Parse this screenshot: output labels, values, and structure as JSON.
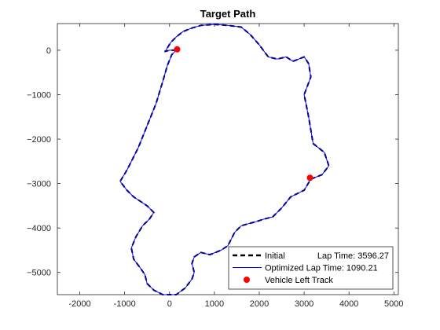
{
  "chart_data": {
    "type": "line",
    "title": "Target Path",
    "xlabel": "",
    "ylabel": "",
    "xlim": [
      -2500,
      5100
    ],
    "ylim": [
      -5500,
      600
    ],
    "grid": false,
    "x_ticks": [
      -2000,
      -1000,
      0,
      1000,
      2000,
      3000,
      4000,
      5000
    ],
    "x_tick_labels": [
      "-2000",
      "-1000",
      "0",
      "1000",
      "2000",
      "3000",
      "4000",
      "5000"
    ],
    "y_ticks": [
      0,
      -1000,
      -2000,
      -3000,
      -4000,
      -5000
    ],
    "y_tick_labels": [
      "0",
      "−1000",
      "−2000",
      "−3000",
      "−4000",
      "−5000"
    ],
    "legend": {
      "placement": "bottom-right",
      "entries": [
        {
          "label": "Initial",
          "extra": "Lap Time: 3596.27",
          "style": "dashed",
          "color": "#000000"
        },
        {
          "label": "Optimized Lap Time: 1090.21",
          "extra": "",
          "style": "solid",
          "color": "#0000ff"
        },
        {
          "label": "Vehicle Left Track",
          "extra": "",
          "style": "marker",
          "color": "#ff0000"
        }
      ]
    },
    "series": [
      {
        "style": "dashed",
        "color": "#000000",
        "points": [
          [
            150,
            0
          ],
          [
            0,
            0
          ],
          [
            -100,
            -30
          ],
          [
            30,
            180
          ],
          [
            150,
            300
          ],
          [
            300,
            420
          ],
          [
            500,
            500
          ],
          [
            700,
            560
          ],
          [
            1000,
            580
          ],
          [
            1300,
            560
          ],
          [
            1600,
            520
          ],
          [
            1800,
            350
          ],
          [
            2000,
            120
          ],
          [
            2200,
            -150
          ],
          [
            2400,
            -200
          ],
          [
            2600,
            -150
          ],
          [
            2750,
            -250
          ],
          [
            3000,
            -150
          ],
          [
            3100,
            -300
          ],
          [
            3150,
            -600
          ],
          [
            3000,
            -1000
          ],
          [
            3100,
            -1500
          ],
          [
            3200,
            -2100
          ],
          [
            3450,
            -2300
          ],
          [
            3550,
            -2600
          ],
          [
            3400,
            -2800
          ],
          [
            3150,
            -2900
          ],
          [
            3000,
            -3150
          ],
          [
            2700,
            -3300
          ],
          [
            2500,
            -3550
          ],
          [
            2300,
            -3750
          ],
          [
            2100,
            -3800
          ],
          [
            1950,
            -3850
          ],
          [
            1600,
            -3950
          ],
          [
            1450,
            -4100
          ],
          [
            1300,
            -4400
          ],
          [
            1150,
            -4500
          ],
          [
            900,
            -4600
          ],
          [
            700,
            -4550
          ],
          [
            550,
            -4650
          ],
          [
            500,
            -4800
          ],
          [
            550,
            -5000
          ],
          [
            500,
            -5150
          ],
          [
            350,
            -5350
          ],
          [
            150,
            -5500
          ],
          [
            -150,
            -5500
          ],
          [
            -350,
            -5400
          ],
          [
            -500,
            -5250
          ],
          [
            -550,
            -5050
          ],
          [
            -650,
            -4900
          ],
          [
            -800,
            -4700
          ],
          [
            -850,
            -4450
          ],
          [
            -750,
            -4200
          ],
          [
            -600,
            -3950
          ],
          [
            -450,
            -3800
          ],
          [
            -350,
            -3650
          ],
          [
            -500,
            -3500
          ],
          [
            -650,
            -3400
          ],
          [
            -800,
            -3300
          ],
          [
            -950,
            -3150
          ],
          [
            -1100,
            -2950
          ],
          [
            -950,
            -2700
          ],
          [
            -700,
            -2200
          ],
          [
            -500,
            -1700
          ],
          [
            -300,
            -1200
          ],
          [
            -150,
            -700
          ],
          [
            -50,
            -350
          ],
          [
            50,
            -100
          ],
          [
            150,
            0
          ]
        ]
      },
      {
        "style": "solid",
        "color": "#0000ff",
        "points": [
          [
            150,
            0
          ],
          [
            0,
            0
          ],
          [
            -100,
            -30
          ],
          [
            30,
            180
          ],
          [
            150,
            300
          ],
          [
            300,
            420
          ],
          [
            500,
            500
          ],
          [
            700,
            560
          ],
          [
            1000,
            580
          ],
          [
            1300,
            560
          ],
          [
            1600,
            520
          ],
          [
            1800,
            350
          ],
          [
            2000,
            120
          ],
          [
            2200,
            -150
          ],
          [
            2400,
            -200
          ],
          [
            2600,
            -150
          ],
          [
            2750,
            -250
          ],
          [
            3000,
            -150
          ],
          [
            3100,
            -300
          ],
          [
            3150,
            -600
          ],
          [
            3000,
            -1000
          ],
          [
            3100,
            -1500
          ],
          [
            3200,
            -2100
          ],
          [
            3450,
            -2300
          ],
          [
            3550,
            -2600
          ],
          [
            3400,
            -2800
          ],
          [
            3150,
            -2900
          ],
          [
            3000,
            -3150
          ],
          [
            2700,
            -3300
          ],
          [
            2500,
            -3550
          ],
          [
            2300,
            -3750
          ],
          [
            2100,
            -3800
          ],
          [
            1950,
            -3850
          ],
          [
            1600,
            -3950
          ],
          [
            1450,
            -4100
          ],
          [
            1300,
            -4400
          ],
          [
            1150,
            -4500
          ],
          [
            900,
            -4600
          ],
          [
            700,
            -4550
          ],
          [
            550,
            -4650
          ],
          [
            500,
            -4800
          ],
          [
            550,
            -5000
          ],
          [
            500,
            -5150
          ],
          [
            350,
            -5350
          ],
          [
            150,
            -5500
          ],
          [
            -150,
            -5500
          ],
          [
            -350,
            -5400
          ],
          [
            -500,
            -5250
          ],
          [
            -550,
            -5050
          ],
          [
            -650,
            -4900
          ],
          [
            -800,
            -4700
          ],
          [
            -850,
            -4450
          ],
          [
            -750,
            -4200
          ],
          [
            -600,
            -3950
          ],
          [
            -450,
            -3800
          ],
          [
            -350,
            -3650
          ],
          [
            -500,
            -3500
          ],
          [
            -650,
            -3400
          ],
          [
            -800,
            -3300
          ],
          [
            -950,
            -3150
          ],
          [
            -1100,
            -2950
          ],
          [
            -950,
            -2700
          ],
          [
            -700,
            -2200
          ],
          [
            -500,
            -1700
          ],
          [
            -300,
            -1200
          ],
          [
            -150,
            -700
          ],
          [
            -50,
            -350
          ],
          [
            50,
            -100
          ],
          [
            150,
            0
          ]
        ]
      }
    ],
    "markers": [
      {
        "x": 170,
        "y": 20,
        "color": "#ff0000"
      },
      {
        "x": 3130,
        "y": -2870,
        "color": "#ff0000"
      }
    ]
  }
}
